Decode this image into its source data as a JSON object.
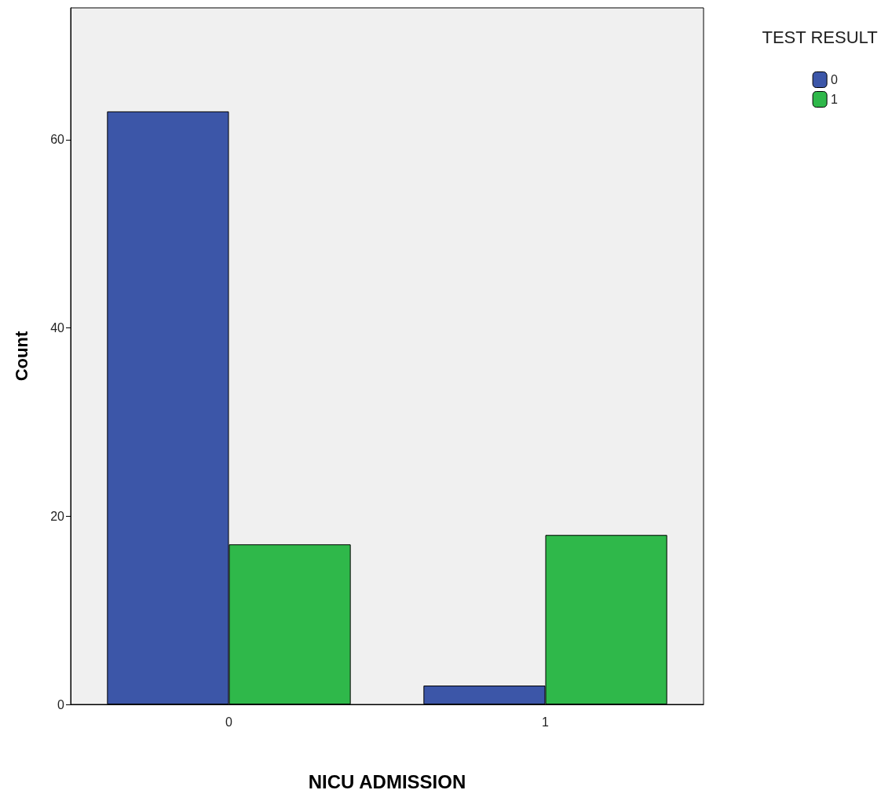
{
  "chart_data": {
    "type": "bar",
    "xlabel": "NICU ADMISSION",
    "ylabel": "Count",
    "legend_title": "TEST RESULT",
    "categories": [
      "0",
      "1"
    ],
    "series": [
      {
        "name": "0",
        "color": "#3c56a8",
        "values": [
          63,
          2
        ]
      },
      {
        "name": "1",
        "color": "#2fb84a",
        "values": [
          17,
          18
        ]
      }
    ],
    "ylim": [
      0,
      74
    ],
    "yticks": [
      0,
      20,
      40,
      60
    ],
    "grid": false,
    "legend": "top right"
  }
}
